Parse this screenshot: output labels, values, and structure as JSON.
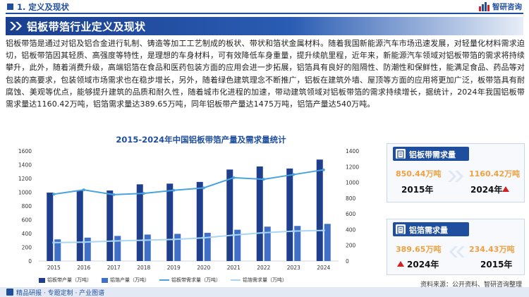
{
  "header": {
    "section": "1. 定义及现状",
    "brand": "智研咨询"
  },
  "title": "铝板带箔行业定义及现状",
  "intro": "铝板带箔是通过对铝及铝合金进行轧制、铸造等加工工艺制成的板状、带状和箔状金属材料。随着我国新能源汽车市场迅速发展，对轻量化材料需求迫切，铝板带箔因其轻质、高强度等特性，是理想的车身材料，可有效降低车身重量，提升续航里程，近年来，新能源汽车领域对铝板带箔的需求将持续攀升，此外，随着消费升级，高端铝箔在食品和医药包装方面的应用会进一步拓展，铝箔具有良好的阻隔性、防潮性和保鲜性，能满足食品、药品等对包装的高要求，包装领域市场需求也在稳步增长，另外，随着绿色建筑理念不断推广，铝板在建筑外墙、屋顶等方面的应用将更加广泛，板带箔具有耐腐蚀、美观等优点，能够提升建筑的品质和耐久性，随着城市化进程的加速，带动建筑领域对铝板带箔的需求持续增长，据统计，2024年我国铝板带需求量达1160.42万吨，铝箔需求量达389.65万吨，同年铝板带产量达1475万吨，铝箔产量达540万吨。",
  "cards": {
    "sheet": {
      "label": "铝板带需求量",
      "value_left": "850.44万吨",
      "value_right": "1160.42万吨",
      "year_left": "2015年",
      "year_right": "2024年"
    },
    "foil": {
      "label": "铝箔需求量",
      "value_left": "389.65万吨",
      "value_right": "234.43万吨",
      "year_left": "2024年",
      "year_right": "2015年"
    }
  },
  "source": "资料来源：公开资料、智研咨询整理",
  "footer": "精品研报 · 专题定制 · 产业图谱",
  "colors": {
    "primary": "#1f4e9e",
    "bar_sheet": "#1f3f8c",
    "bar_foil": "#3f6fc7",
    "line_sheet": "#4aa3df",
    "line_foil": "#a9d6f2",
    "accent_value": "#f0a040",
    "arrow_up": "#d32020"
  },
  "chart_data": {
    "type": "bar",
    "title": "2015-2024年中国铝板带箔产量及需求量统计",
    "categories": [
      "2015",
      "2016",
      "2017",
      "2018",
      "2019",
      "2020",
      "2021",
      "2022",
      "2023",
      "2024"
    ],
    "ylim_left": [
      0,
      1600
    ],
    "yticks_left": [
      0,
      200,
      400,
      600,
      800,
      1000,
      1200,
      1400,
      1600
    ],
    "ylim_right": [
      0,
      1400
    ],
    "yticks_right": [
      0,
      200,
      400,
      600,
      800,
      1000,
      1200,
      1400
    ],
    "grid": false,
    "legend_position": "bottom",
    "series": [
      {
        "name": "铝板带产量（万吨）",
        "kind": "bar",
        "axis": "left",
        "values": [
          995,
          1030,
          1025,
          1115,
          1125,
          1150,
          1330,
          1375,
          1345,
          1475
        ]
      },
      {
        "name": "铝箔产量（万吨）",
        "kind": "bar",
        "axis": "left",
        "values": [
          315,
          340,
          365,
          385,
          395,
          410,
          455,
          500,
          510,
          540
        ]
      },
      {
        "name": "铝板带需求量（万吨）",
        "kind": "line",
        "axis": "right",
        "values": [
          850.44,
          905,
          845,
          860,
          900,
          930,
          1060,
          1040,
          1100,
          1160.42
        ]
      },
      {
        "name": "铝箔需求量（万吨）",
        "kind": "line",
        "axis": "right",
        "values": [
          234.43,
          240,
          255,
          265,
          275,
          295,
          330,
          360,
          380,
          389.65
        ]
      }
    ]
  }
}
